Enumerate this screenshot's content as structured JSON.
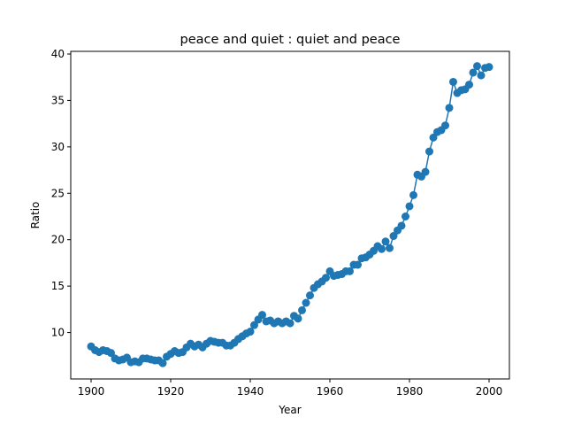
{
  "chart_data": {
    "type": "line",
    "title": "peace and quiet : quiet and peace",
    "xlabel": "Year",
    "ylabel": "Ratio",
    "xlim": [
      1900,
      2000
    ],
    "ylim": [
      5.0,
      40.0
    ],
    "xticks": [
      1900,
      1920,
      1940,
      1960,
      1980,
      2000
    ],
    "yticks": [
      10,
      15,
      20,
      25,
      30,
      35,
      40
    ],
    "grid": false,
    "legend": "none",
    "series": [
      {
        "color": "#1f77b4",
        "marker": "circle",
        "x": [
          1900,
          1901,
          1902,
          1903,
          1904,
          1905,
          1906,
          1907,
          1908,
          1909,
          1910,
          1911,
          1912,
          1913,
          1914,
          1915,
          1916,
          1917,
          1918,
          1919,
          1920,
          1921,
          1922,
          1923,
          1924,
          1925,
          1926,
          1927,
          1928,
          1929,
          1930,
          1931,
          1932,
          1933,
          1934,
          1935,
          1936,
          1937,
          1938,
          1939,
          1940,
          1941,
          1942,
          1943,
          1944,
          1945,
          1946,
          1947,
          1948,
          1949,
          1950,
          1951,
          1952,
          1953,
          1954,
          1955,
          1956,
          1957,
          1958,
          1959,
          1960,
          1961,
          1962,
          1963,
          1964,
          1965,
          1966,
          1967,
          1968,
          1969,
          1970,
          1971,
          1972,
          1973,
          1974,
          1975,
          1976,
          1977,
          1978,
          1979,
          1980,
          1981,
          1982,
          1983,
          1984,
          1985,
          1986,
          1987,
          1988,
          1989,
          1990,
          1991,
          1992,
          1993,
          1994,
          1995,
          1996,
          1997,
          1998,
          1999,
          2000
        ],
        "y": [
          8.5,
          8.1,
          7.9,
          8.1,
          8.0,
          7.8,
          7.2,
          7.0,
          7.1,
          7.3,
          6.8,
          6.9,
          6.8,
          7.2,
          7.2,
          7.1,
          7.0,
          7.0,
          6.7,
          7.4,
          7.7,
          8.0,
          7.8,
          7.9,
          8.4,
          8.8,
          8.5,
          8.7,
          8.4,
          8.8,
          9.1,
          9.0,
          8.9,
          8.9,
          8.6,
          8.6,
          8.9,
          9.3,
          9.6,
          9.9,
          10.1,
          10.8,
          11.4,
          11.9,
          11.2,
          11.3,
          11.0,
          11.2,
          11.0,
          11.2,
          11.0,
          11.8,
          11.5,
          12.4,
          13.2,
          14.0,
          14.8,
          15.2,
          15.5,
          15.9,
          16.6,
          16.1,
          16.2,
          16.3,
          16.6,
          16.6,
          17.3,
          17.3,
          18.0,
          18.1,
          18.4,
          18.8,
          19.3,
          19.0,
          19.8,
          19.1,
          20.4,
          21.0,
          21.5,
          22.5,
          23.6,
          24.8,
          27.0,
          26.8,
          27.3,
          29.5,
          31.0,
          31.6,
          31.8,
          32.3,
          34.2,
          37.0,
          35.8,
          36.1,
          36.2,
          36.7,
          38.0,
          38.7,
          37.7,
          38.5,
          38.6
        ]
      }
    ]
  }
}
